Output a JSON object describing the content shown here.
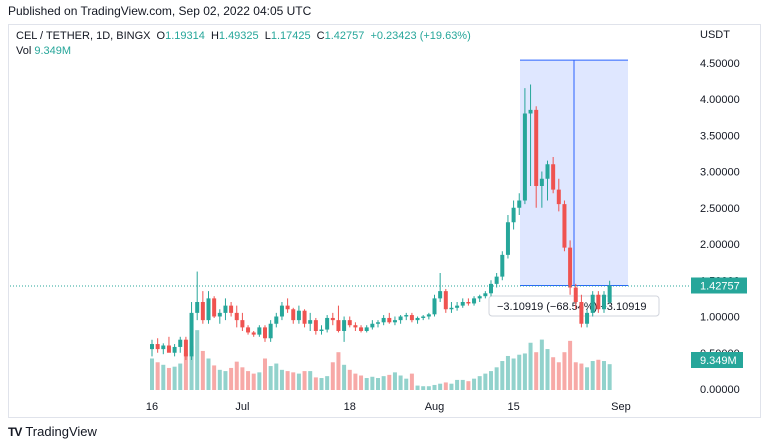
{
  "header": {
    "caption": "Published on TradingView.com, Sep 02, 2022 04:05 UTC"
  },
  "legend": {
    "symbol": "CEL / TETHER, 1D, BINGX",
    "open_label": "O",
    "open": "1.19314",
    "high_label": "H",
    "high": "1.49325",
    "low_label": "L",
    "low": "1.17425",
    "close_label": "C",
    "close": "1.42757",
    "change": "+0.23423 (+19.63%)",
    "vol_label": "Vol",
    "vol": "9.349M"
  },
  "axis": {
    "currency": "USDT",
    "price_ticks": [
      "4.50000",
      "4.00000",
      "3.50000",
      "3.00000",
      "2.50000",
      "2.00000",
      "1.50000",
      "1.00000",
      "0.50000",
      "0.00000"
    ],
    "date_ticks": [
      "16",
      "Jul",
      "18",
      "Aug",
      "15",
      "Sep"
    ],
    "last_price_badge": "1.42757",
    "volume_badge": "9.349M"
  },
  "measure": {
    "label": "−3.10919 (−68.54%) −3.10919"
  },
  "footer": {
    "brand": "TradingView"
  },
  "colors": {
    "up": "#26a69a",
    "down": "#ef5350",
    "measure_fill": "#dbe4ff",
    "measure_line": "#2962ff"
  },
  "chart_data": {
    "type": "candlestick",
    "title": "CEL / TETHER, 1D, BINGX",
    "ylabel": "USDT",
    "ylim": [
      0,
      4.6
    ],
    "x_ticks": [
      "16",
      "Jul",
      "18",
      "Aug",
      "15",
      "Sep"
    ],
    "candles": [
      [
        0.55,
        0.68,
        0.45,
        0.62,
        5.0
      ],
      [
        0.62,
        0.7,
        0.5,
        0.55,
        4.4
      ],
      [
        0.55,
        0.63,
        0.48,
        0.6,
        4.0
      ],
      [
        0.6,
        0.72,
        0.52,
        0.5,
        3.5
      ],
      [
        0.5,
        0.62,
        0.45,
        0.58,
        3.7
      ],
      [
        0.58,
        0.72,
        0.5,
        0.68,
        4.2
      ],
      [
        0.68,
        0.72,
        0.4,
        0.45,
        5.8
      ],
      [
        0.45,
        1.2,
        0.4,
        1.05,
        7.0
      ],
      [
        1.05,
        1.62,
        0.95,
        1.2,
        9.5
      ],
      [
        1.2,
        1.35,
        0.9,
        0.95,
        6.2
      ],
      [
        0.95,
        1.35,
        0.9,
        1.25,
        5.0
      ],
      [
        1.25,
        1.28,
        0.98,
        1.0,
        3.9
      ],
      [
        1.0,
        1.1,
        0.9,
        1.05,
        3.2
      ],
      [
        1.05,
        1.25,
        0.95,
        1.15,
        3.0
      ],
      [
        1.15,
        1.2,
        1.0,
        1.05,
        3.5
      ],
      [
        1.05,
        1.15,
        0.85,
        0.95,
        4.5
      ],
      [
        0.95,
        1.05,
        0.8,
        0.85,
        3.6
      ],
      [
        0.85,
        0.88,
        0.75,
        0.78,
        3.0
      ],
      [
        0.78,
        0.8,
        0.72,
        0.75,
        2.6
      ],
      [
        0.75,
        0.88,
        0.72,
        0.85,
        2.8
      ],
      [
        0.85,
        0.88,
        0.65,
        0.7,
        5.0
      ],
      [
        0.7,
        0.95,
        0.65,
        0.9,
        3.8
      ],
      [
        0.9,
        1.05,
        0.85,
        1.0,
        4.2
      ],
      [
        1.0,
        1.2,
        0.95,
        1.15,
        3.2
      ],
      [
        1.15,
        1.25,
        1.05,
        1.1,
        3.0
      ],
      [
        1.1,
        1.12,
        0.9,
        0.95,
        2.8
      ],
      [
        0.95,
        1.15,
        0.9,
        1.08,
        2.6
      ],
      [
        1.08,
        1.1,
        0.85,
        0.9,
        3.0
      ],
      [
        0.9,
        1.05,
        0.8,
        0.95,
        3.0
      ],
      [
        0.95,
        0.98,
        0.75,
        0.8,
        2.0
      ],
      [
        0.8,
        0.88,
        0.75,
        0.82,
        1.9
      ],
      [
        0.82,
        1.02,
        0.78,
        0.98,
        2.2
      ],
      [
        0.98,
        1.05,
        0.88,
        0.95,
        4.4
      ],
      [
        0.95,
        1.15,
        0.78,
        0.8,
        6.0
      ],
      [
        0.8,
        1.0,
        0.65,
        0.95,
        4.0
      ],
      [
        0.95,
        1.0,
        0.85,
        0.88,
        3.2
      ],
      [
        0.88,
        0.92,
        0.8,
        0.85,
        2.6
      ],
      [
        0.85,
        0.88,
        0.78,
        0.8,
        2.3
      ],
      [
        0.8,
        0.88,
        0.78,
        0.85,
        1.9
      ],
      [
        0.85,
        0.95,
        0.82,
        0.9,
        2.1
      ],
      [
        0.9,
        0.95,
        0.85,
        0.92,
        1.9
      ],
      [
        0.92,
        1.02,
        0.88,
        0.98,
        2.2
      ],
      [
        0.98,
        1.05,
        0.9,
        0.92,
        2.4
      ],
      [
        0.92,
        1.0,
        0.88,
        0.95,
        2.8
      ],
      [
        0.95,
        1.02,
        0.9,
        1.0,
        2.3
      ],
      [
        1.0,
        1.05,
        0.95,
        1.02,
        1.8
      ],
      [
        1.02,
        1.05,
        0.92,
        0.95,
        2.6
      ],
      [
        0.95,
        1.0,
        0.9,
        0.98,
        0.7
      ],
      [
        0.98,
        1.02,
        0.95,
        1.0,
        0.6
      ],
      [
        1.0,
        1.05,
        0.96,
        1.03,
        0.6
      ],
      [
        1.03,
        1.3,
        1.0,
        1.25,
        0.8
      ],
      [
        1.25,
        1.6,
        1.2,
        1.35,
        1.0
      ],
      [
        1.35,
        1.38,
        1.05,
        1.1,
        1.2
      ],
      [
        1.1,
        1.2,
        1.05,
        1.12,
        1.0
      ],
      [
        1.12,
        1.2,
        1.08,
        1.15,
        1.6
      ],
      [
        1.15,
        1.25,
        1.12,
        1.2,
        1.6
      ],
      [
        1.2,
        1.25,
        1.15,
        1.18,
        1.4
      ],
      [
        1.18,
        1.28,
        1.15,
        1.25,
        1.8
      ],
      [
        1.25,
        1.3,
        1.2,
        1.28,
        2.2
      ],
      [
        1.28,
        1.35,
        1.25,
        1.32,
        2.6
      ],
      [
        1.32,
        1.5,
        1.28,
        1.45,
        3.0
      ],
      [
        1.45,
        1.6,
        1.4,
        1.55,
        3.6
      ],
      [
        1.55,
        1.9,
        1.5,
        1.85,
        4.6
      ],
      [
        1.85,
        2.4,
        1.8,
        2.3,
        5.4
      ],
      [
        2.3,
        2.6,
        2.2,
        2.5,
        5.0
      ],
      [
        2.5,
        2.7,
        2.4,
        2.6,
        5.6
      ],
      [
        2.6,
        4.15,
        2.55,
        3.8,
        5.8
      ],
      [
        3.8,
        4.2,
        2.8,
        3.85,
        7.5
      ],
      [
        3.85,
        3.9,
        2.5,
        2.8,
        6.0
      ],
      [
        2.8,
        3.0,
        2.5,
        2.9,
        8.0
      ],
      [
        2.9,
        3.15,
        2.6,
        3.1,
        6.5
      ],
      [
        3.1,
        3.2,
        2.7,
        2.75,
        5.2
      ],
      [
        2.75,
        2.9,
        2.45,
        2.55,
        4.4
      ],
      [
        2.55,
        2.6,
        1.9,
        1.95,
        6.0
      ],
      [
        1.95,
        2.05,
        1.3,
        1.4,
        7.8
      ],
      [
        1.4,
        1.45,
        1.1,
        1.2,
        4.4
      ],
      [
        1.2,
        1.3,
        0.85,
        0.9,
        4.2
      ],
      [
        0.9,
        1.1,
        0.85,
        1.05,
        3.6
      ],
      [
        1.05,
        1.35,
        1.0,
        1.3,
        4.6
      ],
      [
        1.3,
        1.35,
        1.05,
        1.1,
        4.8
      ],
      [
        1.1,
        1.35,
        1.05,
        1.3,
        4.6
      ],
      [
        1.19314,
        1.49325,
        1.17425,
        1.42757,
        4.1
      ]
    ],
    "measure_start_price": 4.53676,
    "measure_end_price": 1.42757,
    "measure_change": "−3.10919 (−68.54%)"
  }
}
